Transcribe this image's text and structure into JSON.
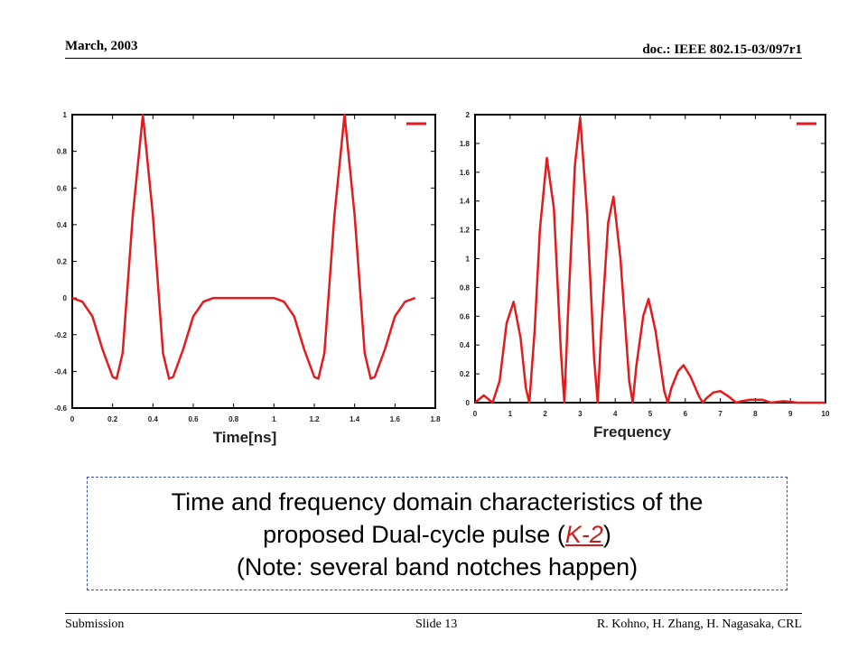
{
  "header": {
    "date": "March, 2003",
    "doc": "doc.: IEEE 802.15-03/097r1"
  },
  "footer": {
    "left": "Submission",
    "center": "Slide 13",
    "right": "R. Kohno, H. Zhang, H. Nagasaka, CRL"
  },
  "caption": {
    "line1": "Time and frequency domain characteristics of the",
    "line2_before": "proposed Dual-cycle pulse (",
    "line2_link": "K-2",
    "line2_after": ")",
    "line3": "(Note: several band notches happen)"
  },
  "colors": {
    "curve": "#e41a1c",
    "caption_border": "#3b4fa0"
  },
  "chart_data": [
    {
      "type": "line",
      "xlabel": "Time[ns]",
      "ylabel": "",
      "xlim": [
        0,
        1.8
      ],
      "ylim": [
        -0.6,
        1
      ],
      "xticks": [
        "0",
        "0.2",
        "0.4",
        "0.6",
        "0.8",
        "1",
        "1.2",
        "1.4",
        "1.6",
        "1.8"
      ],
      "yticks": [
        "-0.6",
        "-0.4",
        "-0.2",
        "0",
        "0.2",
        "0.4",
        "0.6",
        "0.8",
        "1"
      ],
      "legend": "top-right",
      "series": [
        {
          "x": [
            0,
            0.05,
            0.1,
            0.15,
            0.2,
            0.22,
            0.25,
            0.3,
            0.35,
            0.4,
            0.45,
            0.48,
            0.5,
            0.55,
            0.6,
            0.65,
            0.7,
            0.8,
            0.9,
            1.0,
            1.05,
            1.1,
            1.15,
            1.2,
            1.22,
            1.25,
            1.3,
            1.35,
            1.4,
            1.45,
            1.48,
            1.5,
            1.55,
            1.6,
            1.65,
            1.7
          ],
          "y": [
            0,
            -0.02,
            -0.1,
            -0.28,
            -0.43,
            -0.44,
            -0.3,
            0.45,
            1.0,
            0.45,
            -0.3,
            -0.44,
            -0.43,
            -0.28,
            -0.1,
            -0.02,
            0,
            0,
            0,
            0,
            -0.02,
            -0.1,
            -0.28,
            -0.43,
            -0.44,
            -0.3,
            0.45,
            1.0,
            0.45,
            -0.3,
            -0.44,
            -0.43,
            -0.28,
            -0.1,
            -0.02,
            0
          ]
        }
      ]
    },
    {
      "type": "line",
      "xlabel": "Frequency",
      "ylabel": "",
      "xlim": [
        0,
        10
      ],
      "ylim": [
        0,
        2
      ],
      "xticks": [
        "0",
        "1",
        "2",
        "3",
        "4",
        "5",
        "6",
        "7",
        "8",
        "9",
        "10"
      ],
      "yticks": [
        "0",
        "0.2",
        "0.4",
        "0.6",
        "0.8",
        "1",
        "1.2",
        "1.4",
        "1.6",
        "1.8",
        "2"
      ],
      "legend": "top-right",
      "series": [
        {
          "x": [
            0,
            0.25,
            0.5,
            0.7,
            0.9,
            1.1,
            1.3,
            1.45,
            1.55,
            1.7,
            1.85,
            2.05,
            2.25,
            2.45,
            2.55,
            2.65,
            2.85,
            3.0,
            3.2,
            3.4,
            3.5,
            3.6,
            3.8,
            3.95,
            4.15,
            4.4,
            4.5,
            4.6,
            4.8,
            4.95,
            5.15,
            5.4,
            5.5,
            5.6,
            5.8,
            5.95,
            6.15,
            6.4,
            6.5,
            6.6,
            6.8,
            7.0,
            7.25,
            7.45,
            7.6,
            7.85,
            8.2,
            8.45,
            8.8,
            9.2,
            9.6,
            10
          ],
          "y": [
            0,
            0.05,
            0,
            0.15,
            0.55,
            0.7,
            0.45,
            0.1,
            0,
            0.5,
            1.2,
            1.7,
            1.35,
            0.35,
            0,
            0.6,
            1.65,
            1.98,
            1.3,
            0.3,
            0,
            0.5,
            1.25,
            1.43,
            1.0,
            0.15,
            0,
            0.25,
            0.6,
            0.72,
            0.5,
            0.08,
            0,
            0.1,
            0.22,
            0.26,
            0.18,
            0.04,
            0,
            0.03,
            0.07,
            0.08,
            0.04,
            0,
            0.01,
            0.02,
            0.02,
            0,
            0.01,
            0,
            0,
            0
          ]
        }
      ]
    }
  ]
}
